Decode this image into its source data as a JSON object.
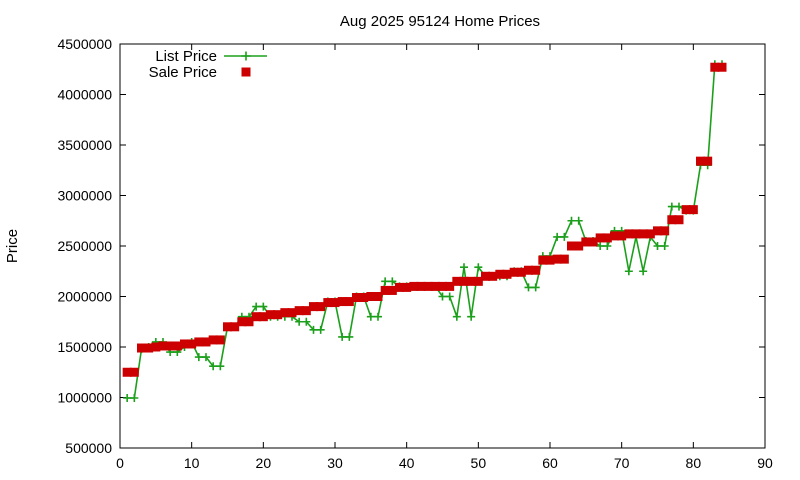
{
  "chart_data": {
    "type": "line",
    "title": "Aug 2025 95124 Home Prices",
    "xlabel": "",
    "ylabel": "Price",
    "xlim": [
      0,
      90
    ],
    "ylim": [
      500000,
      4500000
    ],
    "x_ticks": [
      "0",
      "10",
      "20",
      "30",
      "40",
      "50",
      "60",
      "70",
      "80",
      "90"
    ],
    "y_ticks": [
      "500000",
      "1000000",
      "1500000",
      "2000000",
      "2500000",
      "3000000",
      "3500000",
      "4000000",
      "4500000"
    ],
    "legend_position": "top-left",
    "grid": false,
    "x": [
      1,
      2,
      3,
      4,
      5,
      6,
      7,
      8,
      9,
      10,
      11,
      12,
      13,
      14,
      15,
      16,
      17,
      18,
      19,
      20,
      21,
      22,
      23,
      24,
      25,
      26,
      27,
      28,
      29,
      30,
      31,
      32,
      33,
      34,
      35,
      36,
      37,
      38,
      39,
      40,
      41,
      42,
      43,
      44,
      45,
      46,
      47,
      48,
      49,
      50,
      51,
      52,
      53,
      54,
      55,
      56,
      57,
      58,
      59,
      60,
      61,
      62,
      63,
      64,
      65,
      66,
      67,
      68,
      69,
      70,
      71,
      72,
      73,
      74,
      75,
      76,
      77,
      78,
      79,
      80,
      81,
      82,
      83,
      84
    ],
    "series": [
      {
        "name": "List Price",
        "style": "linespoints",
        "color": "#1ca01c",
        "values": [
          995000,
          995000,
          1480000,
          1500000,
          1550000,
          1550000,
          1450000,
          1450000,
          1500000,
          1550000,
          1400000,
          1400000,
          1310000,
          1310000,
          1700000,
          1700000,
          1800000,
          1800000,
          1900000,
          1900000,
          1800000,
          1800000,
          1800000,
          1800000,
          1750000,
          1750000,
          1670000,
          1670000,
          1950000,
          1950000,
          1600000,
          1600000,
          2000000,
          2000000,
          1800000,
          1800000,
          2150000,
          2150000,
          2100000,
          2100000,
          2100000,
          2100000,
          2100000,
          2100000,
          2000000,
          2000000,
          1800000,
          2290000,
          1800000,
          2290000,
          2200000,
          2200000,
          2200000,
          2200000,
          2250000,
          2250000,
          2090000,
          2090000,
          2400000,
          2400000,
          2590000,
          2590000,
          2750000,
          2750000,
          2550000,
          2550000,
          2500000,
          2500000,
          2650000,
          2650000,
          2250000,
          2590000,
          2250000,
          2590000,
          2500000,
          2500000,
          2890000,
          2890000,
          2850000,
          2850000,
          3300000,
          3300000,
          4300000,
          4300000
        ]
      },
      {
        "name": "Sale Price",
        "style": "points",
        "color": "#cc0000",
        "values": [
          1250000,
          1250000,
          1490000,
          1490000,
          1500000,
          1510000,
          1510000,
          1510000,
          1530000,
          1530000,
          1550000,
          1550000,
          1570000,
          1570000,
          1700000,
          1700000,
          1750000,
          1750000,
          1800000,
          1800000,
          1820000,
          1820000,
          1840000,
          1840000,
          1860000,
          1860000,
          1900000,
          1900000,
          1940000,
          1940000,
          1950000,
          1950000,
          1990000,
          1990000,
          2000000,
          2000000,
          2060000,
          2060000,
          2090000,
          2090000,
          2100000,
          2100000,
          2100000,
          2100000,
          2100000,
          2100000,
          2150000,
          2150000,
          2150000,
          2150000,
          2200000,
          2200000,
          2220000,
          2220000,
          2240000,
          2240000,
          2260000,
          2260000,
          2360000,
          2360000,
          2370000,
          2370000,
          2500000,
          2500000,
          2540000,
          2540000,
          2580000,
          2580000,
          2600000,
          2600000,
          2620000,
          2620000,
          2620000,
          2620000,
          2650000,
          2650000,
          2760000,
          2760000,
          2860000,
          2860000,
          3340000,
          3340000,
          4270000,
          4270000
        ]
      }
    ]
  }
}
